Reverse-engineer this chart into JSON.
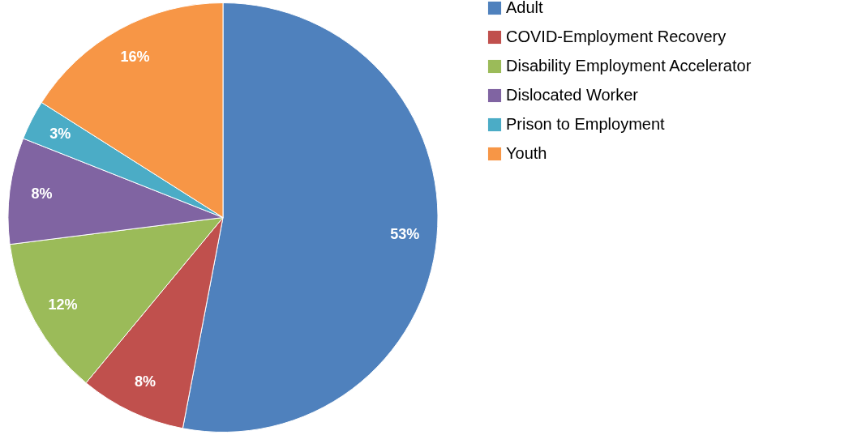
{
  "chart_data": {
    "type": "pie",
    "categories": [
      "Adult",
      "COVID-Employment Recovery",
      "Disability Employment Accelerator",
      "Dislocated Worker",
      "Prison to Employment",
      "Youth"
    ],
    "values": [
      53,
      8,
      12,
      8,
      3,
      16
    ],
    "value_labels": [
      "53%",
      "8%",
      "12%",
      "8%",
      "3%",
      "16%"
    ],
    "colors": [
      "#4f81bd",
      "#c0504d",
      "#9bbb59",
      "#8064a2",
      "#4bacc6",
      "#f79646"
    ],
    "legend": "right"
  }
}
